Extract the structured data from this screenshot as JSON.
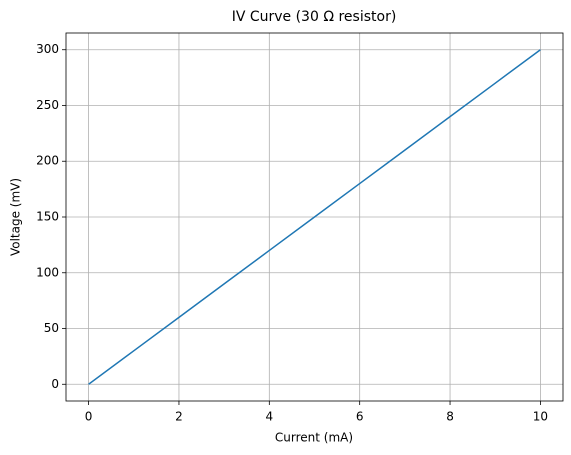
{
  "chart_data": {
    "type": "line",
    "title": "IV Curve (30 Ω resistor)",
    "x_label": "Current (mA)",
    "y_label": "Voltage (mV)",
    "x": [
      0,
      1,
      2,
      3,
      4,
      5,
      6,
      7,
      8,
      9,
      10
    ],
    "series": [
      {
        "color": "#1f77b4",
        "values": [
          0,
          30,
          60,
          90,
          120,
          150,
          180,
          210,
          240,
          270,
          300
        ]
      }
    ],
    "xlim": [
      -0.5,
      10.5
    ],
    "ylim": [
      -15,
      315
    ],
    "xticks": [
      0,
      2,
      4,
      6,
      8,
      10
    ],
    "yticks": [
      0,
      50,
      100,
      150,
      200,
      250,
      300
    ],
    "grid": true
  }
}
